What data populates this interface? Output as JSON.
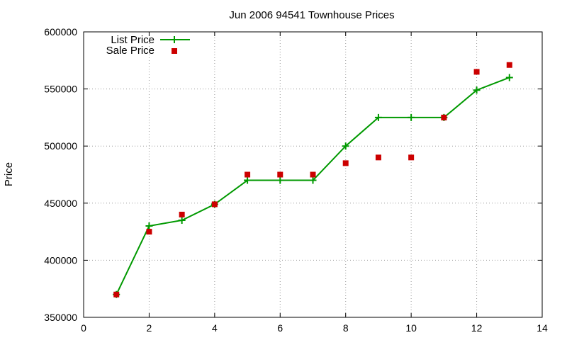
{
  "chart_data": {
    "type": "line",
    "title": "Jun 2006 94541 Townhouse Prices",
    "xlabel": "",
    "ylabel": "Price",
    "xlim": [
      0,
      14
    ],
    "ylim": [
      350000,
      600000
    ],
    "xticks": [
      "0",
      "2",
      "4",
      "6",
      "8",
      "10",
      "12",
      "14"
    ],
    "yticks": [
      "350000",
      "400000",
      "450000",
      "500000",
      "550000",
      "600000"
    ],
    "grid": true,
    "legend_position": "top-left",
    "series": [
      {
        "name": "List Price",
        "style": "line+points",
        "marker": "plus",
        "color": "#009900",
        "x": [
          1,
          2,
          3,
          4,
          5,
          6,
          7,
          8,
          9,
          10,
          11,
          12,
          13
        ],
        "y": [
          370000,
          430000,
          435000,
          449000,
          470000,
          470000,
          470000,
          500000,
          525000,
          525000,
          525000,
          549000,
          560000
        ]
      },
      {
        "name": "Sale Price",
        "style": "points",
        "marker": "square",
        "color": "#cc0000",
        "x": [
          1,
          2,
          3,
          4,
          5,
          6,
          7,
          8,
          9,
          10,
          11,
          12,
          13
        ],
        "y": [
          370000,
          425000,
          440000,
          449000,
          475000,
          475000,
          475000,
          485000,
          490000,
          490000,
          525000,
          565000,
          571000
        ]
      }
    ]
  }
}
